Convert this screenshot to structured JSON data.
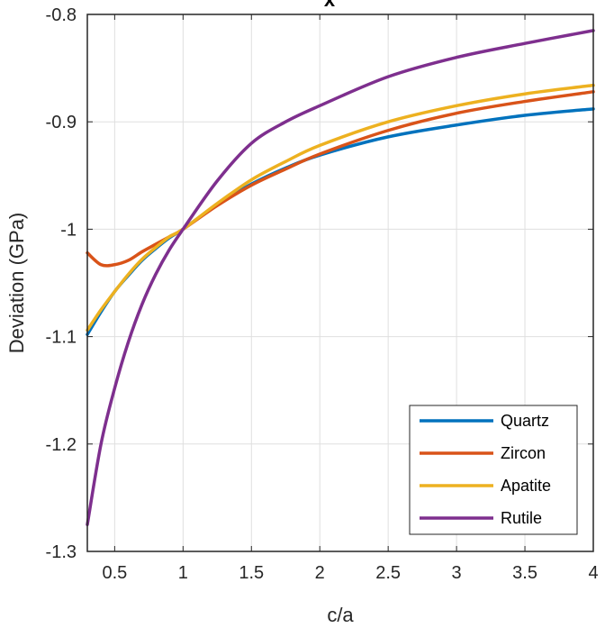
{
  "chart_data": {
    "type": "line",
    "title": "x",
    "xlabel": "c/a",
    "ylabel": "Deviation (GPa)",
    "xlim": [
      0.3,
      4
    ],
    "ylim": [
      -1.3,
      -0.8
    ],
    "xticks": [
      0.5,
      1,
      1.5,
      2,
      2.5,
      3,
      3.5,
      4
    ],
    "yticks": [
      -1.3,
      -1.2,
      -1.1,
      -1,
      -0.9,
      -0.8
    ],
    "xtick_labels": [
      "0.5",
      "1",
      "1.5",
      "2",
      "2.5",
      "3",
      "3.5",
      "4"
    ],
    "ytick_labels": [
      "-1.3",
      "-1.2",
      "-1.1",
      "-1",
      "-0.9",
      "-0.8"
    ],
    "grid": true,
    "legend_position": "bottom-right",
    "x": [
      0.3,
      0.4,
      0.5,
      0.6,
      0.7,
      0.8,
      0.9,
      1.0,
      1.25,
      1.5,
      1.75,
      2.0,
      2.5,
      3.0,
      3.5,
      4.0
    ],
    "series": [
      {
        "name": "Quartz",
        "color": "#0072BD",
        "values": [
          -1.098,
          -1.077,
          -1.058,
          -1.043,
          -1.029,
          -1.018,
          -1.008,
          -1.0,
          -0.977,
          -0.958,
          -0.943,
          -0.931,
          -0.914,
          -0.903,
          -0.894,
          -0.888
        ]
      },
      {
        "name": "Zircon",
        "color": "#D95319",
        "values": [
          -1.022,
          -1.033,
          -1.033,
          -1.029,
          -1.021,
          -1.014,
          -1.007,
          -1.0,
          -0.978,
          -0.959,
          -0.944,
          -0.93,
          -0.908,
          -0.892,
          -0.881,
          -0.872
        ]
      },
      {
        "name": "Apatite",
        "color": "#EDB120",
        "values": [
          -1.094,
          -1.075,
          -1.058,
          -1.042,
          -1.028,
          -1.017,
          -1.007,
          -1.0,
          -0.976,
          -0.954,
          -0.937,
          -0.922,
          -0.9,
          -0.885,
          -0.874,
          -0.866
        ]
      },
      {
        "name": "Rutile",
        "color": "#7E2F8E",
        "values": [
          -1.275,
          -1.2,
          -1.148,
          -1.105,
          -1.07,
          -1.042,
          -1.019,
          -1.0,
          -0.955,
          -0.92,
          -0.9,
          -0.885,
          -0.858,
          -0.84,
          -0.827,
          -0.815
        ]
      }
    ]
  }
}
